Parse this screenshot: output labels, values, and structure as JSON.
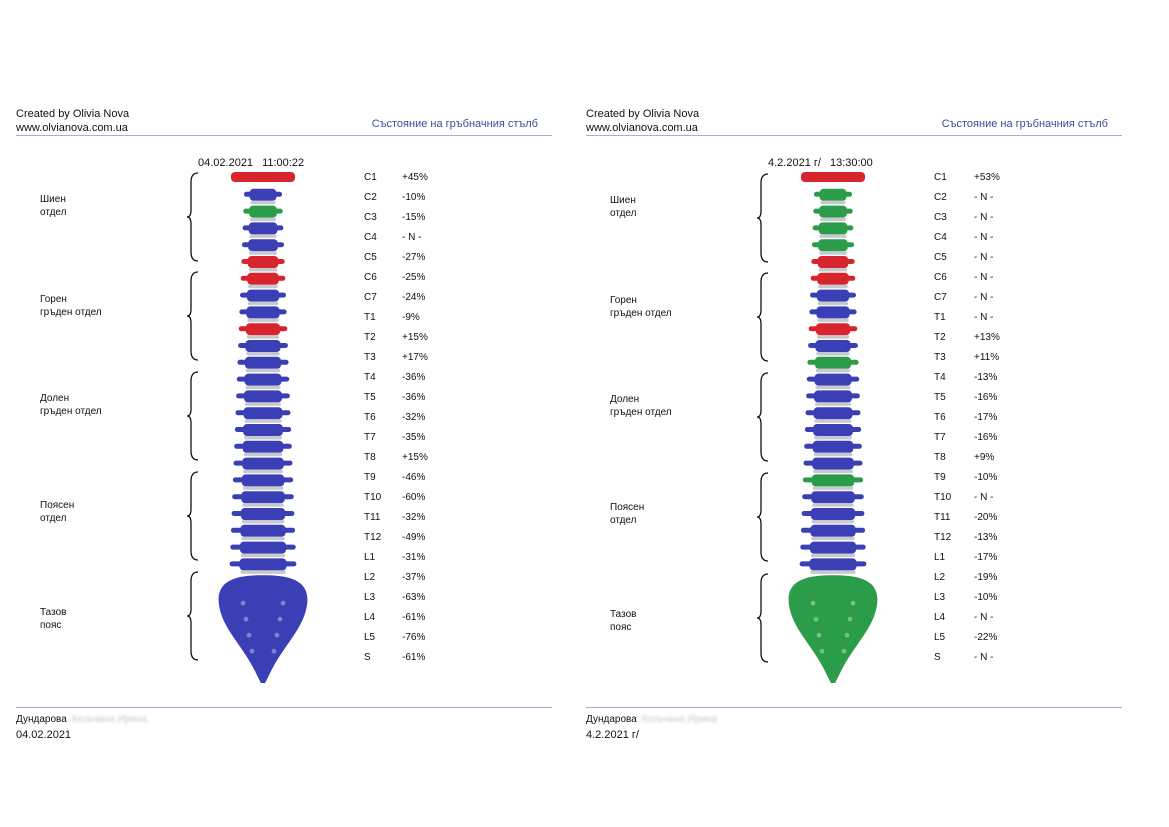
{
  "colors": {
    "red": "#d8242c",
    "blue": "#3a3fb5",
    "green": "#2a9c4a",
    "disc": "#c7c9d1",
    "accent": "#3b4b9a",
    "rule": "#9fb3d6"
  },
  "reports": [
    {
      "header": {
        "author": "Created by Olivia Nova",
        "site": "www.olvianova.com.ua",
        "title": "Състояние на гръбначния стълб"
      },
      "measure_date": "04.02.2021",
      "measure_time": "11:00:22",
      "regions": [
        {
          "lines": [
            "Шиен",
            "отдел"
          ]
        },
        {
          "lines": [
            "Горен",
            "гръден отдел"
          ]
        },
        {
          "lines": [
            "Долен",
            "гръден отдел"
          ]
        },
        {
          "lines": [
            "Поясен",
            "отдел"
          ]
        },
        {
          "lines": [
            "Тазов",
            "пояс"
          ]
        }
      ],
      "vertebrae": [
        {
          "code": "C1",
          "value": "+45%",
          "color": "red"
        },
        {
          "code": "C2",
          "value": "-10%",
          "color": "blue"
        },
        {
          "code": "C3",
          "value": "-15%",
          "color": "green"
        },
        {
          "code": "C4",
          "value": "- N -",
          "color": "blue"
        },
        {
          "code": "C5",
          "value": "-27%",
          "color": "blue"
        },
        {
          "code": "C6",
          "value": "-25%",
          "color": "red"
        },
        {
          "code": "C7",
          "value": "-24%",
          "color": "red"
        },
        {
          "code": "T1",
          "value": " -9%",
          "color": "blue"
        },
        {
          "code": "T2",
          "value": "+15%",
          "color": "blue"
        },
        {
          "code": "T3",
          "value": "+17%",
          "color": "red"
        },
        {
          "code": "T4",
          "value": "-36%",
          "color": "blue"
        },
        {
          "code": "T5",
          "value": "-36%",
          "color": "blue"
        },
        {
          "code": "T6",
          "value": "-32%",
          "color": "blue"
        },
        {
          "code": "T7",
          "value": "-35%",
          "color": "blue"
        },
        {
          "code": "T8",
          "value": "+15%",
          "color": "blue"
        },
        {
          "code": "T9",
          "value": "-46%",
          "color": "blue"
        },
        {
          "code": "T10",
          "value": "-60%",
          "color": "blue"
        },
        {
          "code": "T11",
          "value": "-32%",
          "color": "blue"
        },
        {
          "code": "T12",
          "value": "-49%",
          "color": "blue"
        },
        {
          "code": "L1",
          "value": "-31%",
          "color": "blue"
        },
        {
          "code": "L2",
          "value": "-37%",
          "color": "blue"
        },
        {
          "code": "L3",
          "value": "-63%",
          "color": "blue"
        },
        {
          "code": "L4",
          "value": "-61%",
          "color": "blue"
        },
        {
          "code": "L5",
          "value": "-76%",
          "color": "blue"
        },
        {
          "code": "S",
          "value": "-61%",
          "color": "blue"
        }
      ],
      "footer": {
        "name": "Дундарова",
        "name_blurred": "Хельчана Ирина",
        "date": "04.02.2021"
      }
    },
    {
      "header": {
        "author": "Created by Olivia Nova",
        "site": "www.olvianova.com.ua",
        "title": "Състояние на гръбначния стълб"
      },
      "measure_date": "4.2.2021 г/",
      "measure_time": "13:30:00",
      "regions": [
        {
          "lines": [
            "Шиен",
            "отдел"
          ]
        },
        {
          "lines": [
            "Горен",
            "гръден отдел"
          ]
        },
        {
          "lines": [
            "Долен",
            "гръден отдел"
          ]
        },
        {
          "lines": [
            "Поясен",
            "отдел"
          ]
        },
        {
          "lines": [
            "Тазов",
            "пояс"
          ]
        }
      ],
      "vertebrae": [
        {
          "code": "C1",
          "value": "+53%",
          "color": "red"
        },
        {
          "code": "C2",
          "value": "- N -",
          "color": "green"
        },
        {
          "code": "C3",
          "value": "- N -",
          "color": "green"
        },
        {
          "code": "C4",
          "value": "- N -",
          "color": "green"
        },
        {
          "code": "C5",
          "value": "- N -",
          "color": "green"
        },
        {
          "code": "C6",
          "value": "- N -",
          "color": "red"
        },
        {
          "code": "C7",
          "value": "- N -",
          "color": "red"
        },
        {
          "code": "T1",
          "value": "- N -",
          "color": "blue"
        },
        {
          "code": "T2",
          "value": "+13%",
          "color": "blue"
        },
        {
          "code": "T3",
          "value": "+11%",
          "color": "red"
        },
        {
          "code": "T4",
          "value": "-13%",
          "color": "blue"
        },
        {
          "code": "T5",
          "value": "-16%",
          "color": "green"
        },
        {
          "code": "T6",
          "value": "-17%",
          "color": "blue"
        },
        {
          "code": "T7",
          "value": "-16%",
          "color": "blue"
        },
        {
          "code": "T8",
          "value": "+9%",
          "color": "blue"
        },
        {
          "code": "T9",
          "value": "-10%",
          "color": "blue"
        },
        {
          "code": "T10",
          "value": "- N -",
          "color": "blue"
        },
        {
          "code": "T11",
          "value": "-20%",
          "color": "blue"
        },
        {
          "code": "T12",
          "value": "-13%",
          "color": "green"
        },
        {
          "code": "L1",
          "value": "-17%",
          "color": "blue"
        },
        {
          "code": "L2",
          "value": "-19%",
          "color": "blue"
        },
        {
          "code": "L3",
          "value": "-10%",
          "color": "blue"
        },
        {
          "code": "L4",
          "value": "- N -",
          "color": "blue"
        },
        {
          "code": "L5",
          "value": "-22%",
          "color": "blue"
        },
        {
          "code": "S",
          "value": "- N -",
          "color": "green"
        }
      ],
      "footer": {
        "name": "Дундарова",
        "name_blurred": "Хельчана Ирина",
        "date": "4.2.2021 г/"
      }
    }
  ]
}
